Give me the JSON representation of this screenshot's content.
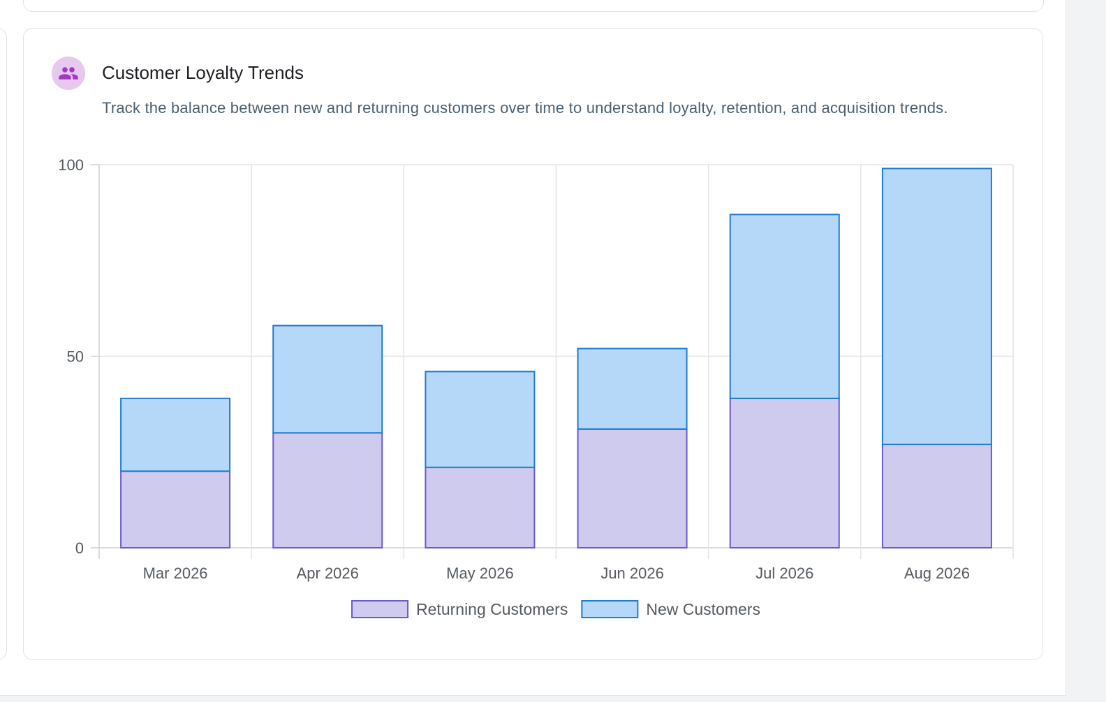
{
  "card": {
    "title": "Customer Loyalty Trends",
    "subtitle": "Track the balance between new and returning customers over time to understand loyalty, retention, and acquisition trends.",
    "icon": "people-icon",
    "icon_color": "#a03bbd",
    "icon_bg": "#e8c8ee"
  },
  "chart_data": {
    "type": "bar",
    "stacked": true,
    "categories": [
      "Mar 2026",
      "Apr 2026",
      "May 2026",
      "Jun 2026",
      "Jul 2026",
      "Aug 2026"
    ],
    "series": [
      {
        "name": "Returning Customers",
        "values": [
          20,
          30,
          21,
          31,
          39,
          27
        ],
        "fill": "#cfcbef",
        "stroke": "#6a5acd"
      },
      {
        "name": "New Customers",
        "values": [
          19,
          28,
          25,
          21,
          48,
          72
        ],
        "fill": "#b6d8f8",
        "stroke": "#1f7ccf"
      }
    ],
    "ylim": [
      0,
      100
    ],
    "yticks": [
      "0",
      "50",
      "100"
    ],
    "grid": true,
    "legend": "bottom"
  }
}
